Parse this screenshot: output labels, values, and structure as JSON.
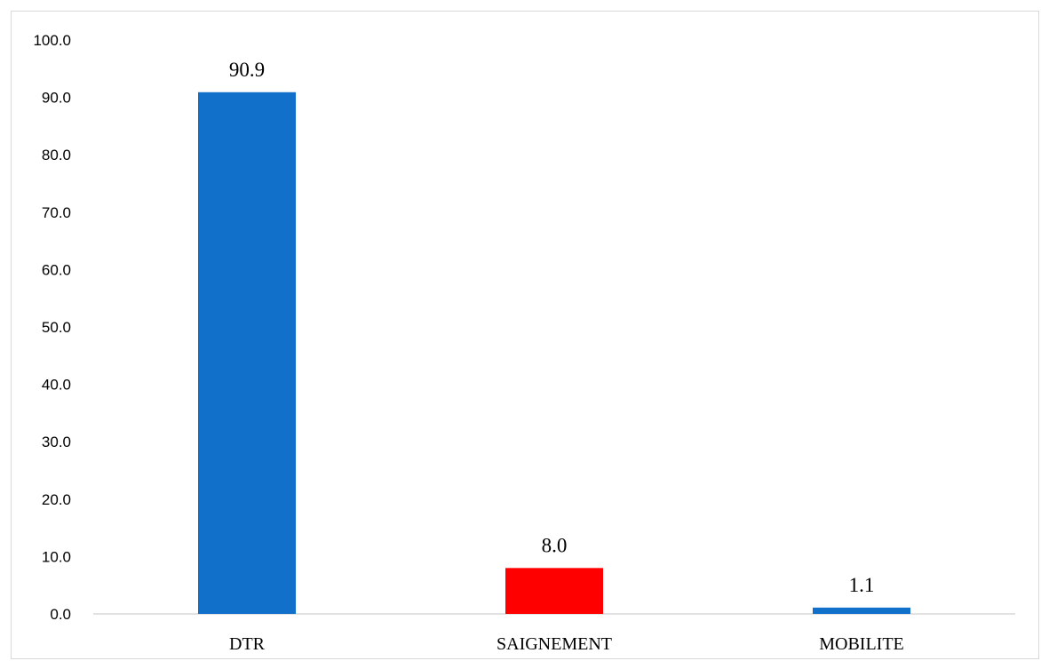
{
  "chart_data": {
    "type": "bar",
    "categories": [
      "DTR",
      "SAIGNEMENT",
      "MOBILITE"
    ],
    "values": [
      90.9,
      8.0,
      1.1
    ],
    "value_labels": [
      "90.9",
      "8.0",
      "1.1"
    ],
    "bar_colors": [
      "#1170c9",
      "#ff0000",
      "#1170c9"
    ],
    "ylim": [
      0,
      100
    ],
    "yticks": [
      0,
      10,
      20,
      30,
      40,
      50,
      60,
      70,
      80,
      90,
      100
    ],
    "ytick_labels": [
      "0.0",
      "10.0",
      "20.0",
      "30.0",
      "40.0",
      "50.0",
      "60.0",
      "70.0",
      "80.0",
      "90.0",
      "100.0"
    ],
    "grid": false,
    "legend": "none",
    "title": "",
    "xlabel": "",
    "ylabel": ""
  }
}
